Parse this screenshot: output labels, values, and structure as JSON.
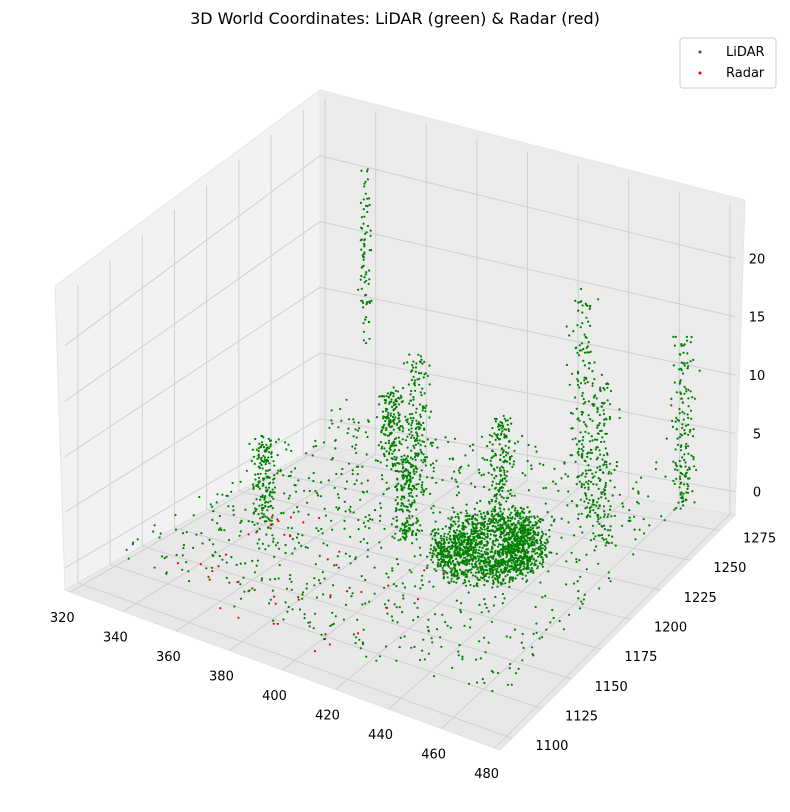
{
  "chart_data": {
    "type": "scatter",
    "title": "3D World Coordinates: LiDAR (green) & Radar (red)",
    "xlabel": "",
    "ylabel": "",
    "zlabel": "",
    "x_ticks": [
      "320",
      "340",
      "360",
      "380",
      "400",
      "420",
      "440",
      "460",
      "480"
    ],
    "y_ticks": [
      "1100",
      "1125",
      "1150",
      "1175",
      "1200",
      "1225",
      "1250",
      "1275"
    ],
    "z_ticks": [
      "0",
      "5",
      "10",
      "15",
      "20"
    ],
    "xlim": [
      318,
      482
    ],
    "ylim": [
      1090,
      1288
    ],
    "zlim": [
      -2,
      25
    ],
    "grid": true,
    "legend": {
      "position": "top-right",
      "entries": [
        "LiDAR",
        "Radar"
      ]
    },
    "series": [
      {
        "name": "LiDAR",
        "color": "#008000",
        "point_count_approx": 6000,
        "description_clusters": [
          "dense ring near (405,1190,0)",
          "vertical structures at x~380-460",
          "tall poles up to z~22"
        ]
      },
      {
        "name": "Radar",
        "color": "#ff0000",
        "point_count_approx": 40,
        "description_clusters": [
          "sparse points near ground, x 340-420, y 1100-1180"
        ]
      }
    ]
  }
}
